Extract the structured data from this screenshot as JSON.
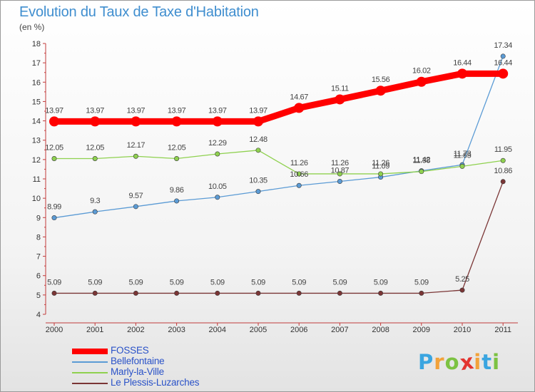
{
  "title": "Evolution du Taux de Taxe d'Habitation",
  "unit": "(en %)",
  "logo": {
    "letters": [
      "P",
      "r",
      "o",
      "x",
      "i",
      "t",
      "i"
    ],
    "colors": [
      "#3aa5e0",
      "#f2a23a",
      "#7cc242",
      "#e3342f",
      "#f2a23a",
      "#3aa5e0",
      "#7cc242"
    ]
  },
  "chart_data": {
    "type": "line",
    "title": "Evolution du Taux de Taxe d'Habitation",
    "ylabel": "(en %)",
    "xlabel": "",
    "categories": [
      "2000",
      "2001",
      "2002",
      "2003",
      "2004",
      "2005",
      "2006",
      "2007",
      "2008",
      "2009",
      "2010",
      "2011"
    ],
    "y_ticks": [
      "4",
      "5",
      "6",
      "7",
      "8",
      "9",
      "10",
      "11",
      "12",
      "13",
      "14",
      "15",
      "16",
      "17",
      "18"
    ],
    "ylim": [
      4,
      18
    ],
    "grid": false,
    "legend": "bottom-left",
    "series": [
      {
        "name": "FOSSES",
        "color": "#ff0000",
        "values": [
          13.97,
          13.97,
          13.97,
          13.97,
          13.97,
          13.97,
          14.67,
          15.11,
          15.56,
          16.02,
          16.44,
          16.44
        ],
        "labels": [
          "13.97",
          "13.97",
          "13.97",
          "13.97",
          "13.97",
          "13.97",
          "14.67",
          "15.11",
          "15.56",
          "16.02",
          "16.44",
          "16.44"
        ]
      },
      {
        "name": "Bellefontaine",
        "color": "#5b9bd5",
        "values": [
          8.99,
          9.3,
          9.57,
          9.86,
          10.05,
          10.35,
          10.66,
          10.87,
          11.09,
          11.42,
          11.73,
          17.34
        ],
        "labels": [
          "8.99",
          "9.3",
          "9.57",
          "9.86",
          "10.05",
          "10.35",
          "10.66",
          "10.87",
          "11.09",
          "11.42",
          "11.73",
          "17.34"
        ]
      },
      {
        "name": "Marly-la-Ville",
        "color": "#8fd14f",
        "values": [
          12.05,
          12.05,
          12.17,
          12.05,
          12.29,
          12.48,
          11.26,
          11.26,
          11.26,
          11.38,
          11.65,
          11.95
        ],
        "labels": [
          "12.05",
          "12.05",
          "12.17",
          "12.05",
          "12.29",
          "12.48",
          "11.26",
          "11.26",
          "11.26",
          "11.38",
          "11.65",
          "11.95"
        ]
      },
      {
        "name": "Le Plessis-Luzarches",
        "color": "#7a3535",
        "values": [
          5.09,
          5.09,
          5.09,
          5.09,
          5.09,
          5.09,
          5.09,
          5.09,
          5.09,
          5.09,
          5.25,
          10.86
        ],
        "labels": [
          "5.09",
          "5.09",
          "5.09",
          "5.09",
          "5.09",
          "5.09",
          "5.09",
          "5.09",
          "5.09",
          "5.09",
          "5.25",
          "10.86"
        ]
      }
    ]
  }
}
